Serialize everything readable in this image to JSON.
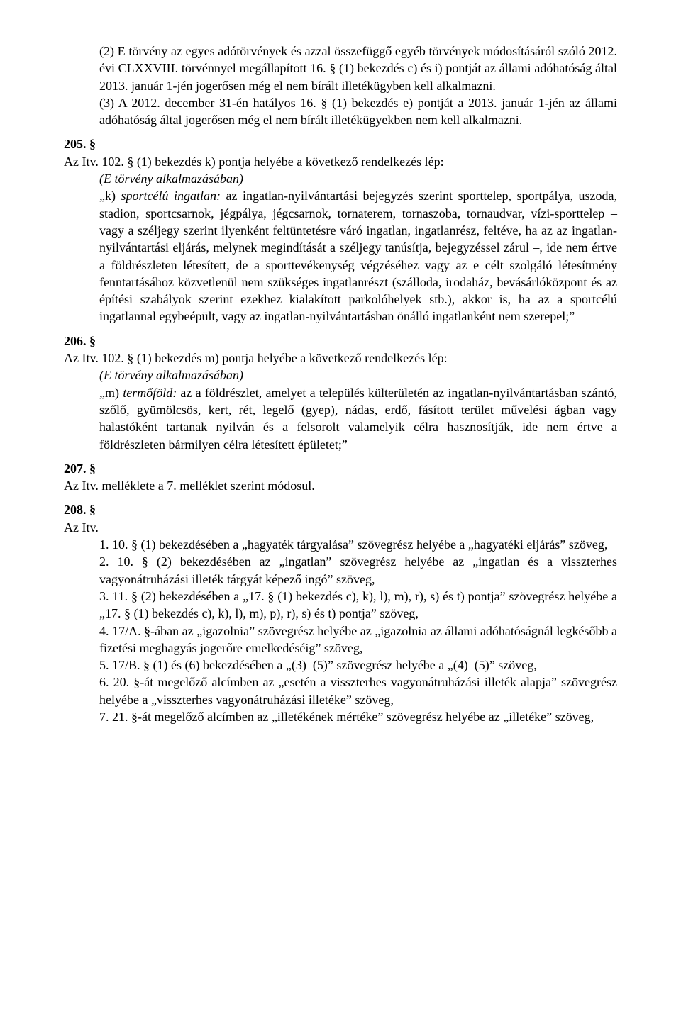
{
  "p204": {
    "para2": "(2) E törvény az egyes adótörvények és azzal összefüggő egyéb törvények módosításáról szóló 2012. évi CLXXVIII. törvénnyel megállapított 16. § (1) bekezdés c) és i) pontját az állami adóhatóság által 2013. január 1-jén jogerősen még el nem bírált illetékügyben kell alkalmazni.",
    "para3": "(3) A 2012. december 31-én hatályos 16. § (1) bekezdés e) pontját a 2013. január 1-jén az állami adóhatóság által jogerősen még el nem bírált illetékügyekben nem kell alkalmazni."
  },
  "s205": {
    "num": "205. §",
    "intro": "Az Itv. 102. § (1) bekezdés k) pontja helyébe a következő rendelkezés lép:",
    "context": "(E törvény alkalmazásában)",
    "body": "„k) sportcélú ingatlan: az ingatlan-nyilvántartási bejegyzés szerint sporttelep, sportpálya, uszoda, stadion, sportcsarnok, jégpálya, jégcsarnok, tornaterem, tornaszoba, tornaudvar, vízi-sporttelep – vagy a széljegy szerint ilyenként feltüntetésre váró ingatlan, ingatlanrész, feltéve, ha az az ingatlan-nyilvántartási eljárás, melynek megindítását a széljegy tanúsítja, bejegyzéssel zárul –, ide nem értve a földrészleten létesített, de a sporttevékenység végzéséhez vagy az e célt szolgáló létesítmény fenntartásához közvetlenül nem szükséges ingatlanrészt (szálloda, irodaház, bevásárlóközpont és az építési szabályok szerint ezekhez kialakított parkolóhelyek stb.), akkor is, ha az a sportcélú ingatlannal egybeépült, vagy az ingatlan-nyilvántartásban önálló ingatlanként nem szerepel;”"
  },
  "s206": {
    "num": "206. §",
    "intro": "Az Itv. 102. § (1) bekezdés m) pontja helyébe a következő rendelkezés lép:",
    "context": "(E törvény alkalmazásában)",
    "body": "„m) termőföld: az a földrészlet, amelyet a település külterületén az ingatlan-nyilvántartásban szántó, szőlő, gyümölcsös, kert, rét, legelő (gyep), nádas, erdő, fásított terület művelési ágban vagy halastóként tartanak nyilván és a felsorolt valamelyik célra hasznosítják, ide nem értve a földrészleten bármilyen célra létesített épületet;”"
  },
  "s207": {
    "num": "207. §",
    "line": "Az Itv. melléklete a 7. melléklet szerint módosul."
  },
  "s208": {
    "num": "208. §",
    "intro": "Az Itv.",
    "items": [
      "1. 10. § (1) bekezdésében a „hagyaték tárgyalása” szövegrész helyébe a „hagyatéki eljárás” szöveg,",
      "2. 10. § (2) bekezdésében az „ingatlan” szövegrész helyébe az „ingatlan és a visszterhes vagyonátruházási illeték tárgyát képező ingó” szöveg,",
      "3. 11. § (2) bekezdésében a „17. § (1) bekezdés c), k), l), m), r), s) és t) pontja” szövegrész helyébe a „17. § (1) bekezdés c), k), l), m), p), r), s) és t) pontja” szöveg,",
      "4. 17/A. §-ában az „igazolnia” szövegrész helyébe az „igazolnia az állami adóhatóságnál legkésőbb a fizetési meghagyás jogerőre emelkedéséig” szöveg,",
      "5. 17/B. § (1) és (6) bekezdésében a „(3)–(5)” szövegrész helyébe a „(4)–(5)” szöveg,",
      "6. 20. §-át megelőző alcímben az „esetén a visszterhes vagyonátruházási illeték alapja” szövegrész helyébe a „visszterhes vagyonátruházási illetéke” szöveg,",
      "7. 21. §-át megelőző alcímben az „illetékének mértéke” szövegrész helyébe az „illetéke” szöveg,"
    ]
  }
}
